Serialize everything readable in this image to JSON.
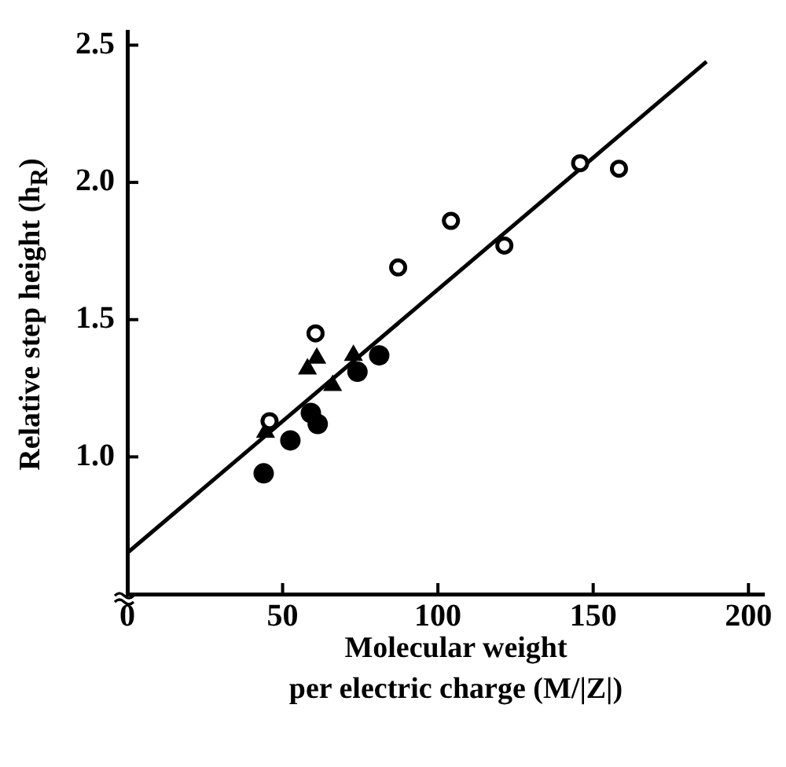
{
  "chart_data": {
    "type": "scatter",
    "xlabel": "Molecular weight\nper electric charge (M/|Z|)",
    "ylabel": "Relative step height (h$_{R}$)",
    "series": [
      {
        "marker": "circle",
        "color": "#000000",
        "x": [
          45.8,
          60.6,
          87.2,
          104.2,
          121.4,
          145.8,
          158.3
        ],
        "values": [
          1.13,
          1.45,
          1.69,
          1.86,
          1.77,
          2.07,
          2.05
        ]
      },
      {
        "marker": "circle",
        "color": "#000000",
        "x": [
          43.9,
          52.5,
          59.1,
          61.3,
          74.1,
          81.1
        ],
        "values": [
          0.94,
          1.06,
          1.16,
          1.12,
          1.31,
          1.37
        ]
      },
      {
        "marker": "triangle",
        "color": "#000000",
        "x": [
          44.5,
          58.0,
          61.0,
          66.1,
          72.8
        ],
        "values": [
          1.09,
          1.32,
          1.36,
          1.26,
          1.37
        ]
      },
      {
        "type": "line",
        "marker": "none",
        "color": "#000000",
        "x": [
          0,
          186.5
        ],
        "values": [
          0.65,
          2.44
        ]
      }
    ],
    "xlim": [
      0,
      205
    ],
    "xticks": [
      0,
      50,
      100,
      150,
      200
    ],
    "ylim": [
      0.5,
      2.55
    ],
    "yticks": [
      {
        "value": 1,
        "label": "1.0"
      },
      {
        "value": 1.5,
        "label": "1.5"
      },
      {
        "value": 2,
        "label": "2.0"
      },
      {
        "value": 2.5,
        "label": "2.5"
      }
    ],
    "grid": false,
    "legend": false
  }
}
